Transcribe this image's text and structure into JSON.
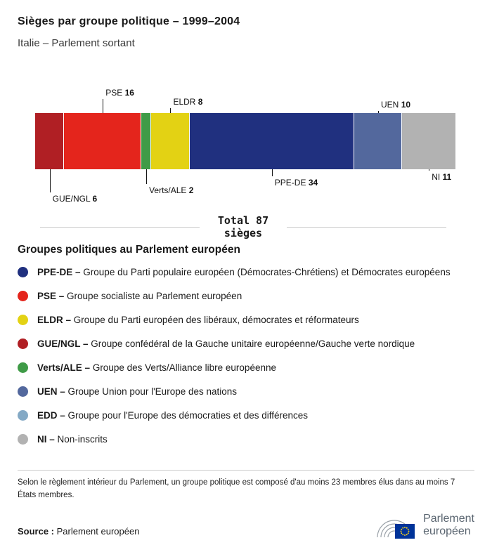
{
  "header": {
    "title": "Sièges par groupe politique – 1999–2004",
    "subtitle": "Italie – Parlement sortant"
  },
  "chart_data": {
    "type": "bar",
    "title": "Sièges par groupe politique – 1999–2004",
    "subtitle": "Italie – Parlement sortant",
    "total": 87,
    "unit": "sièges",
    "total_label": {
      "line1": "Total 87",
      "line2": "sièges"
    },
    "segments": [
      {
        "name": "GUE/NGL",
        "seats": 6,
        "color": "#b01f24",
        "label_side": "below",
        "line_len": 33
      },
      {
        "name": "PSE",
        "seats": 16,
        "color": "#e4251c",
        "label_side": "above",
        "line_len": 20
      },
      {
        "name": "Verts/ALE",
        "seats": 2,
        "color": "#3f9b47",
        "label_side": "below",
        "line_len": 21
      },
      {
        "name": "ELDR",
        "seats": 8,
        "color": "#e3d214",
        "label_side": "above",
        "line_len": 7
      },
      {
        "name": "PPE-DE",
        "seats": 34,
        "color": "#20307f",
        "label_side": "below",
        "line_len": 10
      },
      {
        "name": "UEN",
        "seats": 10,
        "color": "#53689d",
        "label_side": "above",
        "line_len": 3
      },
      {
        "name": "NI",
        "seats": 11,
        "color": "#b2b2b2",
        "label_side": "below",
        "line_len": 2
      }
    ]
  },
  "legend": {
    "title": "Groupes politiques au Parlement européen",
    "items": [
      {
        "abbr": "PPE-DE –",
        "desc": "Groupe du Parti populaire européen (Démocrates-Chrétiens) et Démocrates européens",
        "color": "#20307f"
      },
      {
        "abbr": "PSE –",
        "desc": "Groupe socialiste au Parlement européen",
        "color": "#e4251c"
      },
      {
        "abbr": "ELDR –",
        "desc": "Groupe du Parti européen des libéraux, démocrates et réformateurs",
        "color": "#e3d214"
      },
      {
        "abbr": "GUE/NGL –",
        "desc": "Groupe confédéral de la Gauche unitaire européenne/Gauche verte nordique",
        "color": "#b01f24"
      },
      {
        "abbr": "Verts/ALE –",
        "desc": "Groupe des Verts/Alliance libre européenne",
        "color": "#3f9b47"
      },
      {
        "abbr": "UEN –",
        "desc": "Groupe Union pour l'Europe des nations",
        "color": "#53689d"
      },
      {
        "abbr": "EDD –",
        "desc": "Groupe pour l'Europe des démocraties et des différences",
        "color": "#84a9c5"
      },
      {
        "abbr": "NI –",
        "desc": "Non-inscrits",
        "color": "#b2b2b2"
      }
    ]
  },
  "footnote": "Selon le règlement intérieur du Parlement, un groupe politique est composé d'au moins 23 membres élus dans au moins 7 États membres.",
  "source": {
    "label": "Source :",
    "value": "Parlement européen"
  },
  "logo": {
    "line1": "Parlement",
    "line2": "européen"
  }
}
